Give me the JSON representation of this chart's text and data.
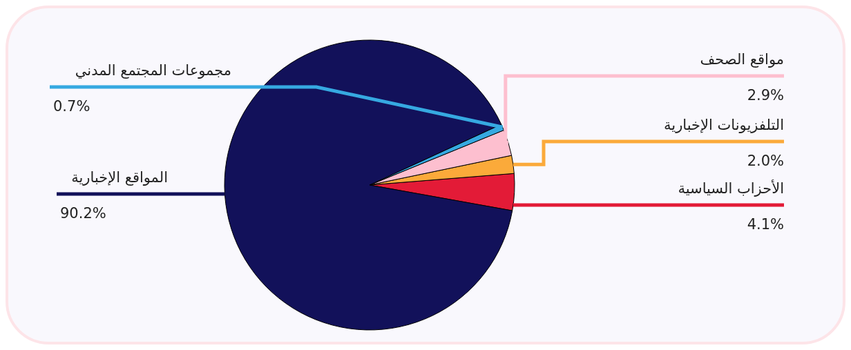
{
  "chart_data": {
    "type": "pie",
    "categories": [
      "الأحزاب السياسية",
      "التلفزيونات الإخبارية",
      "مواقع الصحف",
      "مجموعات المجتمع المدني",
      "المواقع الإخبارية"
    ],
    "values": [
      4.1,
      2.0,
      2.9,
      0.7,
      90.2
    ],
    "colors": [
      "#e31b37",
      "#fbaa3a",
      "#fdbfcf",
      "#36a9e1",
      "#12115a"
    ],
    "value_labels": [
      "4.1%",
      "2.0%",
      "2.9%",
      "0.7%",
      "90.2%"
    ]
  }
}
